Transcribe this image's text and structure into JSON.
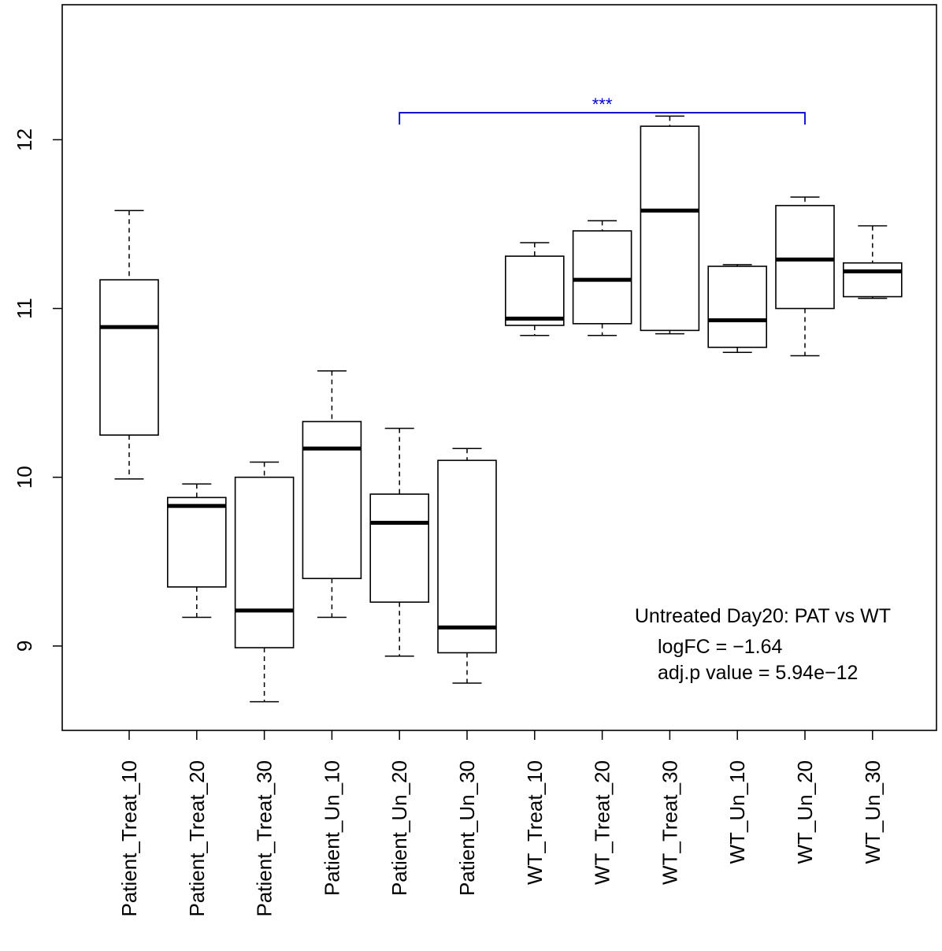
{
  "chart_data": {
    "type": "boxplot",
    "ylim": [
      8.5,
      12.8
    ],
    "yticks": [
      9,
      10,
      11,
      12
    ],
    "ytick_labels": [
      "9",
      "10",
      "11",
      "12"
    ],
    "categories": [
      "Patient_Treat_10",
      "Patient_Treat_20",
      "Patient_Treat_30",
      "Patient_Un_10",
      "Patient_Un_20",
      "Patient_Un_30",
      "WT_Treat_10",
      "WT_Treat_20",
      "WT_Treat_30",
      "WT_Un_10",
      "WT_Un_20",
      "WT_Un_30"
    ],
    "boxes": [
      {
        "min": 9.99,
        "q1": 10.25,
        "median": 10.89,
        "q3": 11.17,
        "max": 11.58
      },
      {
        "min": 9.17,
        "q1": 9.35,
        "median": 9.83,
        "q3": 9.88,
        "max": 9.96
      },
      {
        "min": 8.67,
        "q1": 8.99,
        "median": 9.21,
        "q3": 10.0,
        "max": 10.09
      },
      {
        "min": 9.17,
        "q1": 9.4,
        "median": 10.17,
        "q3": 10.33,
        "max": 10.63
      },
      {
        "min": 8.94,
        "q1": 9.26,
        "median": 9.73,
        "q3": 9.9,
        "max": 10.29
      },
      {
        "min": 8.78,
        "q1": 8.96,
        "median": 9.11,
        "q3": 10.1,
        "max": 10.17
      },
      {
        "min": 10.84,
        "q1": 10.9,
        "median": 10.94,
        "q3": 11.31,
        "max": 11.39
      },
      {
        "min": 10.84,
        "q1": 10.91,
        "median": 11.17,
        "q3": 11.46,
        "max": 11.52
      },
      {
        "min": 10.85,
        "q1": 10.87,
        "median": 11.58,
        "q3": 12.08,
        "max": 12.14
      },
      {
        "min": 10.74,
        "q1": 10.77,
        "median": 10.93,
        "q3": 11.25,
        "max": 11.26
      },
      {
        "min": 10.72,
        "q1": 11.0,
        "median": 11.29,
        "q3": 11.61,
        "max": 11.66
      },
      {
        "min": 11.06,
        "q1": 11.07,
        "median": 11.22,
        "q3": 11.27,
        "max": 11.49
      }
    ],
    "significance": {
      "from_index": 4,
      "to_index": 10,
      "y": 12.16,
      "label": "***",
      "color": "#0000cc"
    },
    "annotations": {
      "title": "Untreated Day20: PAT vs WT",
      "logfc": "logFC =  −1.64",
      "pvalue": "adj.p value =  5.94e−12"
    },
    "grid": false
  }
}
